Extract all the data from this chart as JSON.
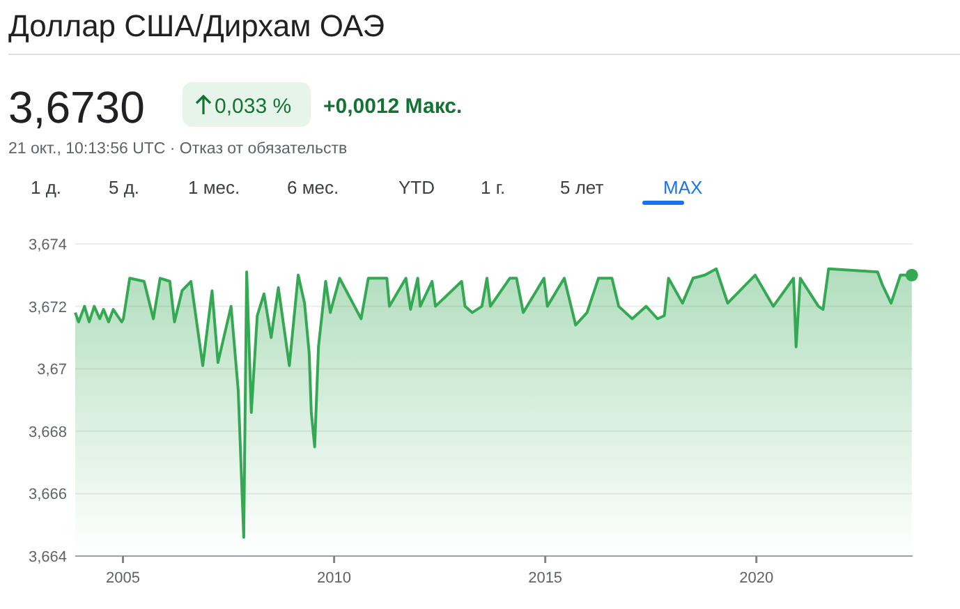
{
  "chart_data": {
    "type": "line",
    "title": "Доллар США/Дирхам ОАЭ",
    "annotations": [
      "3,6730",
      "0,033 %",
      "+0,0012 Макс.",
      "21 окт., 10:13:56 UTC · Отказ от обязательств",
      "1 д.",
      "5 д.",
      "1 мес.",
      "6 мес.",
      "YTD",
      "1 г.",
      "5 лет",
      "MAX"
    ],
    "x": [
      2003.87,
      2003.95,
      2004.09,
      2004.2,
      2004.32,
      2004.45,
      2004.54,
      2004.66,
      2004.77,
      2004.97,
      2005.01,
      2005.16,
      2005.5,
      2005.72,
      2005.88,
      2006.11,
      2006.22,
      2006.4,
      2006.61,
      2006.89,
      2007.11,
      2007.25,
      2007.56,
      2007.73,
      2007.86,
      2007.93,
      2008.04,
      2008.18,
      2008.34,
      2008.51,
      2008.68,
      2008.94,
      2009.15,
      2009.3,
      2009.41,
      2009.46,
      2009.54,
      2009.63,
      2009.8,
      2009.91,
      2010.13,
      2010.64,
      2010.81,
      2011.25,
      2011.31,
      2011.7,
      2011.81,
      2011.98,
      2012.04,
      2012.32,
      2012.4,
      2013.02,
      2013.1,
      2013.27,
      2013.5,
      2013.62,
      2013.7,
      2014.16,
      2014.32,
      2014.48,
      2014.97,
      2015.05,
      2015.45,
      2015.72,
      2015.99,
      2016.26,
      2016.58,
      2016.74,
      2017.06,
      2017.39,
      2017.66,
      2017.82,
      2017.92,
      2018.25,
      2018.5,
      2018.78,
      2019.05,
      2019.32,
      2019.97,
      2020.4,
      2020.88,
      2020.94,
      2021.04,
      2021.47,
      2021.58,
      2021.71,
      2022.87,
      2022.98,
      2023.19,
      2023.41,
      2023.68
    ],
    "series": [
      {
        "color": "#34a853",
        "values": [
          3.6718,
          3.6715,
          3.672,
          3.6715,
          3.672,
          3.6716,
          3.6719,
          3.6715,
          3.6719,
          3.6715,
          3.6716,
          3.6729,
          3.6728,
          3.6716,
          3.6729,
          3.6728,
          3.6715,
          3.6725,
          3.6728,
          3.6701,
          3.6725,
          3.6702,
          3.672,
          3.6693,
          3.6646,
          3.6731,
          3.6686,
          3.6717,
          3.6724,
          3.671,
          3.6726,
          3.6701,
          3.673,
          3.6721,
          3.6705,
          3.6686,
          3.6675,
          3.6707,
          3.6728,
          3.6718,
          3.6729,
          3.6716,
          3.6729,
          3.6729,
          3.672,
          3.6729,
          3.6719,
          3.6729,
          3.672,
          3.6728,
          3.672,
          3.6728,
          3.672,
          3.6718,
          3.672,
          3.6729,
          3.672,
          3.6729,
          3.6729,
          3.6718,
          3.6729,
          3.672,
          3.6729,
          3.6714,
          3.6718,
          3.6729,
          3.6729,
          3.672,
          3.6716,
          3.672,
          3.6716,
          3.6717,
          3.6729,
          3.6721,
          3.6729,
          3.673,
          3.6732,
          3.6721,
          3.673,
          3.672,
          3.6729,
          3.6707,
          3.6729,
          3.672,
          3.6719,
          3.6732,
          3.6731,
          3.6727,
          3.6721,
          3.673,
          3.673
        ]
      }
    ],
    "xlim": [
      2003.87,
      2023.7
    ],
    "xticks": [
      2005,
      2010,
      2015,
      2020
    ],
    "ylim": [
      3.664,
      3.674
    ],
    "yticks": [
      {
        "value": 3.664,
        "label": "3,664"
      },
      {
        "value": 3.666,
        "label": "3,666"
      },
      {
        "value": 3.668,
        "label": "3,668"
      },
      {
        "value": 3.67,
        "label": "3,67"
      },
      {
        "value": 3.672,
        "label": "3,672"
      },
      {
        "value": 3.674,
        "label": "3,674"
      }
    ],
    "grid": "y"
  }
}
